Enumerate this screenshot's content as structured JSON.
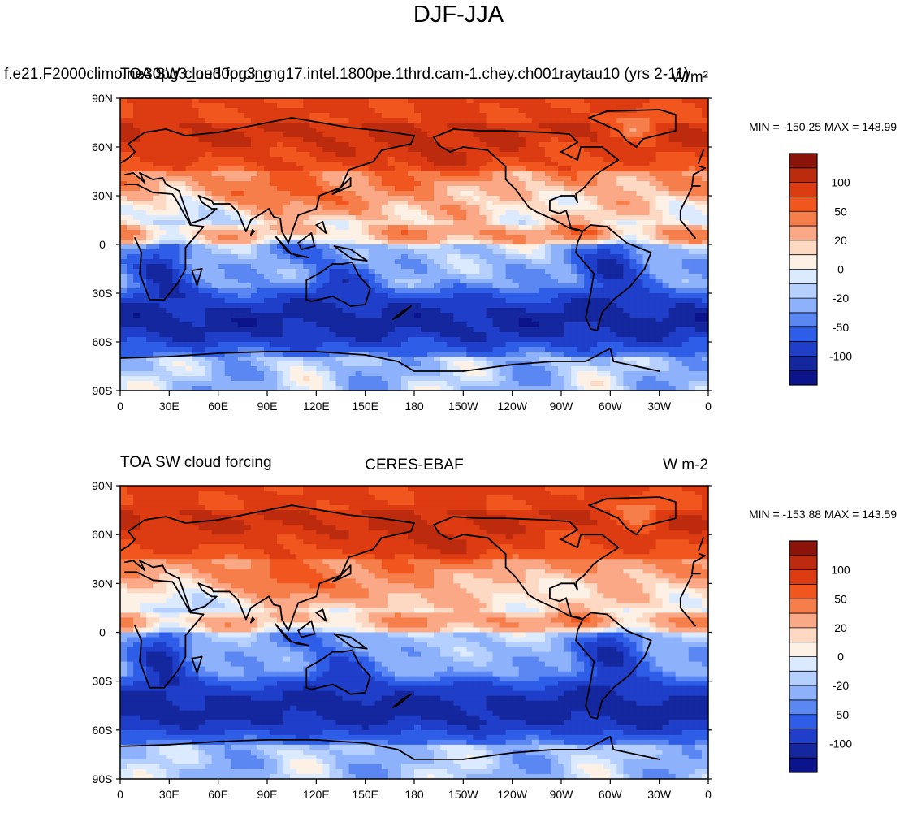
{
  "page": {
    "title": "DJF-JJA"
  },
  "panels": [
    {
      "id": "model",
      "overlap_titles": [
        "f.e21.F2000climo.ne30pg3_ne30pg3_mg17.intel.1800pe.1thrd.cam-1.chey.ch001raytau10 (yrs 2-11)",
        "TOA SW cloud forcing"
      ],
      "left_title": "",
      "center_title": "",
      "right_title": "W/m²",
      "minmax": "MIN = -150.25 MAX = 148.99"
    },
    {
      "id": "obs",
      "overlap_titles": [],
      "left_title": "TOA SW cloud forcing",
      "center_title": "CERES-EBAF",
      "right_title": "W m-2",
      "minmax": "MIN = -153.88 MAX = 143.59"
    }
  ],
  "axes": {
    "lat_labels": [
      "90N",
      "60N",
      "30N",
      "0",
      "30S",
      "60S",
      "90S"
    ],
    "lon_labels": [
      "0",
      "30E",
      "60E",
      "90E",
      "120E",
      "150E",
      "180",
      "150W",
      "120W",
      "90W",
      "60W",
      "30W",
      "0"
    ]
  },
  "colorbar": {
    "labels": [
      "100",
      "50",
      "20",
      "0",
      "-20",
      "-50",
      "-100"
    ],
    "colors": [
      "#8c1309",
      "#bd2b0f",
      "#dd3b12",
      "#f2561f",
      "#f67e4b",
      "#fba887",
      "#fdd9c3",
      "#fdf1e6",
      "#dceaff",
      "#b5cfff",
      "#8eb1fb",
      "#5b87f3",
      "#2e5de7",
      "#1f3ec9",
      "#15279e",
      "#0c148c"
    ]
  },
  "legend_colors": {
    "coast": "#000000",
    "neutral": "#fdf1e6"
  }
}
